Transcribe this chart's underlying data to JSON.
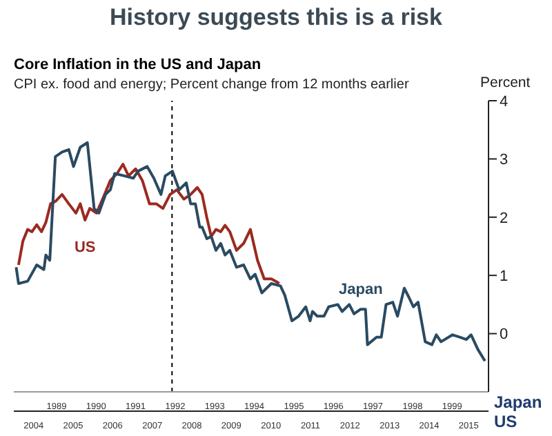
{
  "chart_data": {
    "type": "line",
    "title": "History suggests this is a risk",
    "subtitle": "Core Inflation in the US and Japan",
    "annotations": [
      "CPI ex. food and energy; Percent change from 12 months earlier"
    ],
    "ylabel": "Percent",
    "xlabel": "US",
    "x2label": "Japan",
    "xlim": [
      2004,
      2016
    ],
    "xticks": [
      {
        "value": 2004.5,
        "label": "2004"
      },
      {
        "value": 2005.5,
        "label": "2005"
      },
      {
        "value": 2006.5,
        "label": "2006"
      },
      {
        "value": 2007.5,
        "label": "2007"
      },
      {
        "value": 2008.5,
        "label": "2008"
      },
      {
        "value": 2009.5,
        "label": "2009"
      },
      {
        "value": 2010.5,
        "label": "2010"
      },
      {
        "value": 2011.5,
        "label": "2011"
      },
      {
        "value": 2012.5,
        "label": "2012"
      },
      {
        "value": 2013.5,
        "label": "2013"
      },
      {
        "value": 2014.5,
        "label": "2014"
      },
      {
        "value": 2015.5,
        "label": "2015"
      }
    ],
    "x2lim": [
      1988.42,
      2000.42
    ],
    "x2ticks": [
      {
        "value": 1989.5,
        "label": "1989"
      },
      {
        "value": 1990.5,
        "label": "1990"
      },
      {
        "value": 1991.5,
        "label": "1991"
      },
      {
        "value": 1992.5,
        "label": "1992"
      },
      {
        "value": 1993.5,
        "label": "1993"
      },
      {
        "value": 1994.5,
        "label": "1994"
      },
      {
        "value": 1995.5,
        "label": "1995"
      },
      {
        "value": 1996.5,
        "label": "1996"
      },
      {
        "value": 1997.5,
        "label": "1997"
      },
      {
        "value": 1998.5,
        "label": "1998"
      },
      {
        "value": 1999.5,
        "label": "1999"
      }
    ],
    "ylim": [
      -1,
      4
    ],
    "yticks": [
      0,
      1,
      2,
      3,
      4
    ],
    "ref_lines": [
      {
        "axis": "x",
        "value": 2008,
        "color": "#000000",
        "line_style": "dashed"
      }
    ],
    "series": [
      {
        "name": "US",
        "color": "#9b2a1f",
        "x": [
          2004.12,
          2004.23,
          2004.35,
          2004.46,
          2004.58,
          2004.7,
          2004.81,
          2004.93,
          2005.05,
          2005.22,
          2005.39,
          2005.57,
          2005.68,
          2005.8,
          2005.92,
          2006.09,
          2006.27,
          2006.44,
          2006.61,
          2006.76,
          2006.9,
          2007.08,
          2007.25,
          2007.43,
          2007.6,
          2007.77,
          2007.95,
          2008.12,
          2008.3,
          2008.47,
          2008.64,
          2008.76,
          2008.88,
          2008.99,
          2009.11,
          2009.23,
          2009.34,
          2009.46,
          2009.63,
          2009.81,
          2009.98,
          2010.16,
          2010.33,
          2010.51,
          2010.62,
          2010.71
        ],
        "values": [
          1.18,
          1.59,
          1.79,
          1.75,
          1.87,
          1.75,
          1.91,
          2.23,
          2.27,
          2.39,
          2.23,
          2.07,
          2.23,
          1.95,
          2.15,
          2.07,
          2.35,
          2.63,
          2.75,
          2.91,
          2.71,
          2.83,
          2.63,
          2.23,
          2.23,
          2.15,
          2.39,
          2.47,
          2.31,
          2.39,
          2.51,
          2.39,
          1.99,
          1.67,
          1.79,
          1.75,
          1.86,
          1.75,
          1.43,
          1.55,
          1.79,
          1.26,
          0.94,
          0.94,
          0.9,
          0.86
        ]
      },
      {
        "name": "Japan",
        "color": "#2a4a62",
        "axis": "x2",
        "x": [
          1988.48,
          1988.54,
          1988.77,
          1989.0,
          1989.18,
          1989.23,
          1989.33,
          1989.47,
          1989.64,
          1989.81,
          1989.93,
          1990.1,
          1990.28,
          1990.45,
          1990.57,
          1990.74,
          1990.86,
          1990.97,
          1991.21,
          1991.44,
          1991.56,
          1991.79,
          1991.96,
          1992.14,
          1992.25,
          1992.43,
          1992.6,
          1992.78,
          1992.89,
          1993.01,
          1993.12,
          1993.18,
          1993.3,
          1993.41,
          1993.53,
          1993.65,
          1993.76,
          1993.88,
          1994.05,
          1994.23,
          1994.4,
          1994.52,
          1994.69,
          1994.93,
          1995.16,
          1995.27,
          1995.45,
          1995.62,
          1995.8,
          1995.91,
          1995.97,
          1996.09,
          1996.26,
          1996.38,
          1996.61,
          1996.72,
          1996.9,
          1997.02,
          1997.19,
          1997.31,
          1997.36,
          1997.59,
          1997.71,
          1997.83,
          1998.0,
          1998.12,
          1998.29,
          1998.41,
          1998.52,
          1998.64,
          1998.82,
          1998.99,
          1999.1,
          1999.22,
          1999.51,
          1999.69,
          1999.86,
          1999.98,
          2000.15,
          2000.33
        ],
        "values": [
          1.14,
          0.86,
          0.9,
          1.18,
          1.1,
          1.35,
          1.26,
          3.04,
          3.12,
          3.16,
          2.87,
          3.2,
          3.28,
          2.15,
          2.07,
          2.39,
          2.47,
          2.75,
          2.71,
          2.67,
          2.79,
          2.87,
          2.67,
          2.39,
          2.71,
          2.79,
          2.47,
          2.59,
          2.23,
          2.23,
          1.83,
          1.83,
          1.63,
          1.67,
          1.43,
          1.55,
          1.35,
          1.43,
          1.14,
          1.18,
          0.94,
          1.02,
          0.7,
          0.86,
          0.82,
          0.66,
          0.22,
          0.3,
          0.46,
          0.22,
          0.38,
          0.3,
          0.3,
          0.46,
          0.5,
          0.38,
          0.5,
          0.34,
          0.42,
          0.42,
          -0.19,
          -0.06,
          -0.06,
          0.5,
          0.54,
          0.3,
          0.78,
          0.62,
          0.46,
          0.54,
          -0.14,
          -0.19,
          -0.02,
          -0.14,
          -0.02,
          -0.06,
          -0.1,
          -0.02,
          -0.27,
          -0.47
        ]
      }
    ]
  }
}
